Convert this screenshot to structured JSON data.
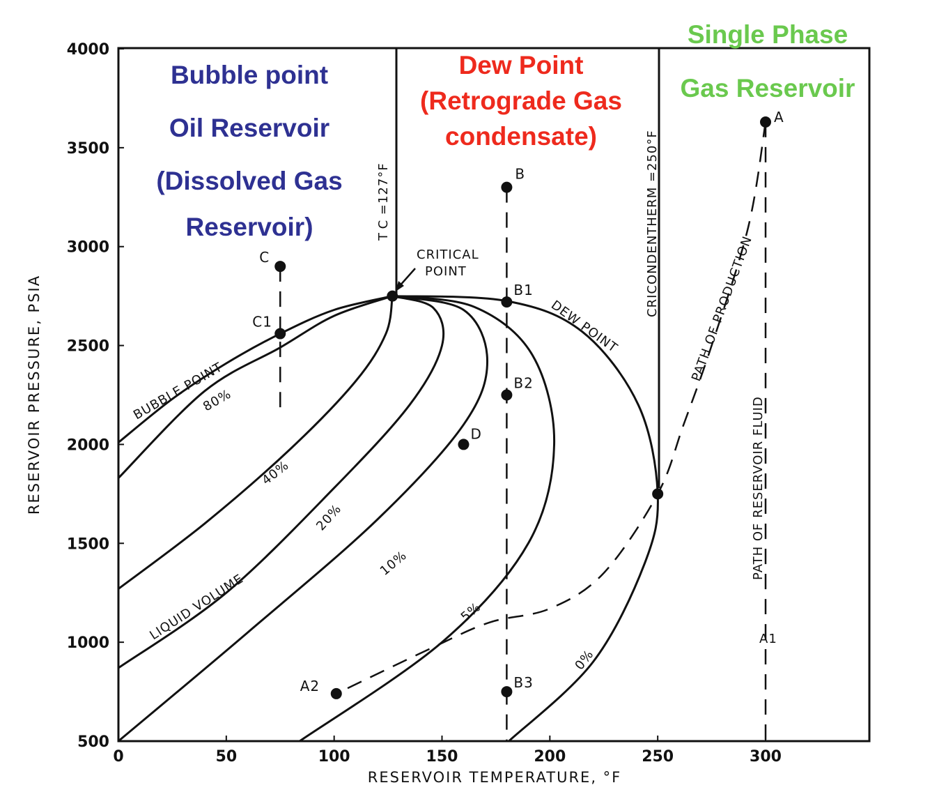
{
  "chart_data": {
    "type": "line",
    "xlabel": "RESERVOIR TEMPERATURE, °F",
    "ylabel": "RESERVOIR PRESSURE, PSIA",
    "xlim": [
      0,
      348
    ],
    "ylim": [
      500,
      4000
    ],
    "x_ticks": [
      "0",
      "50",
      "100",
      "150",
      "200",
      "250",
      "300"
    ],
    "y_ticks": [
      "500",
      "1000",
      "1500",
      "2000",
      "2500",
      "3000",
      "3500",
      "4000"
    ],
    "grid": false,
    "colors": {
      "blue": "#2e3192",
      "red": "#ee2a1d",
      "green": "#6ac94e",
      "ink": "#111111"
    },
    "region_labels": {
      "bubble": {
        "lines": [
          "Bubble point",
          "Oil Reservoir",
          "(Dissolved Gas",
          "Reservoir)"
        ],
        "color": "#2e3192"
      },
      "dew": {
        "lines": [
          "Dew Point",
          "(Retrograde Gas",
          "condensate)"
        ],
        "color": "#ee2a1d"
      },
      "single": {
        "lines": [
          "Single Phase",
          "Gas Reservoir"
        ],
        "color": "#6ac94e"
      }
    },
    "vertical_lines": [
      {
        "label": "T C =127°F",
        "x": 127
      },
      {
        "label": "CRICONDENTHERM =250°F",
        "x": 250
      }
    ],
    "series": [
      {
        "name": "BUBBLE POINT",
        "points": [
          [
            0,
            2010
          ],
          [
            25,
            2230
          ],
          [
            50,
            2410
          ],
          [
            75,
            2560
          ],
          [
            100,
            2680
          ],
          [
            127,
            2750
          ]
        ]
      },
      {
        "name": "80%",
        "points": [
          [
            0,
            1830
          ],
          [
            40,
            2270
          ],
          [
            75,
            2490
          ],
          [
            100,
            2650
          ],
          [
            127,
            2750
          ]
        ]
      },
      {
        "name": "40%",
        "points": [
          [
            0,
            1270
          ],
          [
            40,
            1600
          ],
          [
            80,
            1980
          ],
          [
            110,
            2320
          ],
          [
            124,
            2560
          ],
          [
            127,
            2750
          ]
        ]
      },
      {
        "name": "20%",
        "points": [
          [
            0,
            870
          ],
          [
            50,
            1250
          ],
          [
            100,
            1780
          ],
          [
            135,
            2200
          ],
          [
            150,
            2500
          ],
          [
            146,
            2690
          ],
          [
            127,
            2750
          ]
        ]
      },
      {
        "name": "10%",
        "points": [
          [
            0,
            500
          ],
          [
            60,
            1050
          ],
          [
            120,
            1620
          ],
          [
            160,
            2100
          ],
          [
            171,
            2420
          ],
          [
            160,
            2680
          ],
          [
            127,
            2750
          ]
        ]
      },
      {
        "name": "5%",
        "points": [
          [
            84,
            500
          ],
          [
            150,
            1000
          ],
          [
            190,
            1500
          ],
          [
            202,
            2000
          ],
          [
            192,
            2450
          ],
          [
            165,
            2695
          ],
          [
            127,
            2750
          ]
        ]
      },
      {
        "name": "DEW POINT 0%",
        "points": [
          [
            181,
            500
          ],
          [
            220,
            900
          ],
          [
            244,
            1400
          ],
          [
            250,
            1750
          ],
          [
            241,
            2200
          ],
          [
            215,
            2570
          ],
          [
            180,
            2725
          ],
          [
            127,
            2750
          ]
        ]
      }
    ],
    "liquid_volume_label": "LIQUID VOLUME",
    "dashed_paths": [
      {
        "name": "PATH OF RESERVOIR FLUID",
        "points": [
          [
            300,
            3630
          ],
          [
            300,
            500
          ]
        ]
      },
      {
        "name": "B path",
        "points": [
          [
            180,
            3300
          ],
          [
            180,
            500
          ]
        ]
      },
      {
        "name": "C path",
        "points": [
          [
            75,
            2900
          ],
          [
            75,
            2150
          ]
        ]
      },
      {
        "name": "PATH OF PRODUCTION",
        "points": [
          [
            300,
            3630
          ],
          [
            292,
            3100
          ],
          [
            275,
            2500
          ],
          [
            262,
            2100
          ],
          [
            250,
            1750
          ],
          [
            225,
            1350
          ],
          [
            200,
            1170
          ],
          [
            172,
            1100
          ],
          [
            145,
            970
          ],
          [
            101,
            740
          ]
        ]
      }
    ],
    "points": [
      {
        "label": "A",
        "x": 300,
        "y": 3630
      },
      {
        "label": "B",
        "x": 180,
        "y": 3300
      },
      {
        "label": "B1",
        "x": 180,
        "y": 2720
      },
      {
        "label": "B2",
        "x": 180,
        "y": 2250
      },
      {
        "label": "B3",
        "x": 180,
        "y": 750
      },
      {
        "label": "C",
        "x": 75,
        "y": 2900
      },
      {
        "label": "C1",
        "x": 75,
        "y": 2560
      },
      {
        "label": "D",
        "x": 160,
        "y": 2000
      },
      {
        "label": "A2",
        "x": 101,
        "y": 740
      },
      {
        "label": "",
        "x": 250,
        "y": 1750
      },
      {
        "label": "",
        "x": 127,
        "y": 2750
      }
    ],
    "text_labels": {
      "A1": "A1",
      "critical_point": [
        "CRITICAL",
        "POINT"
      ],
      "bubble_point": "BUBBLE POINT",
      "dew_point": "DEW POINT",
      "path_of_production": "PATH OF PRODUCTION",
      "path_of_reservoir_fluid": "PATH OF RESERVOIR FLUID",
      "pct_80": "80%",
      "pct_40": "40%",
      "pct_20": "20%",
      "pct_10": "10%",
      "pct_5": "5%",
      "pct_0": "0%"
    }
  }
}
